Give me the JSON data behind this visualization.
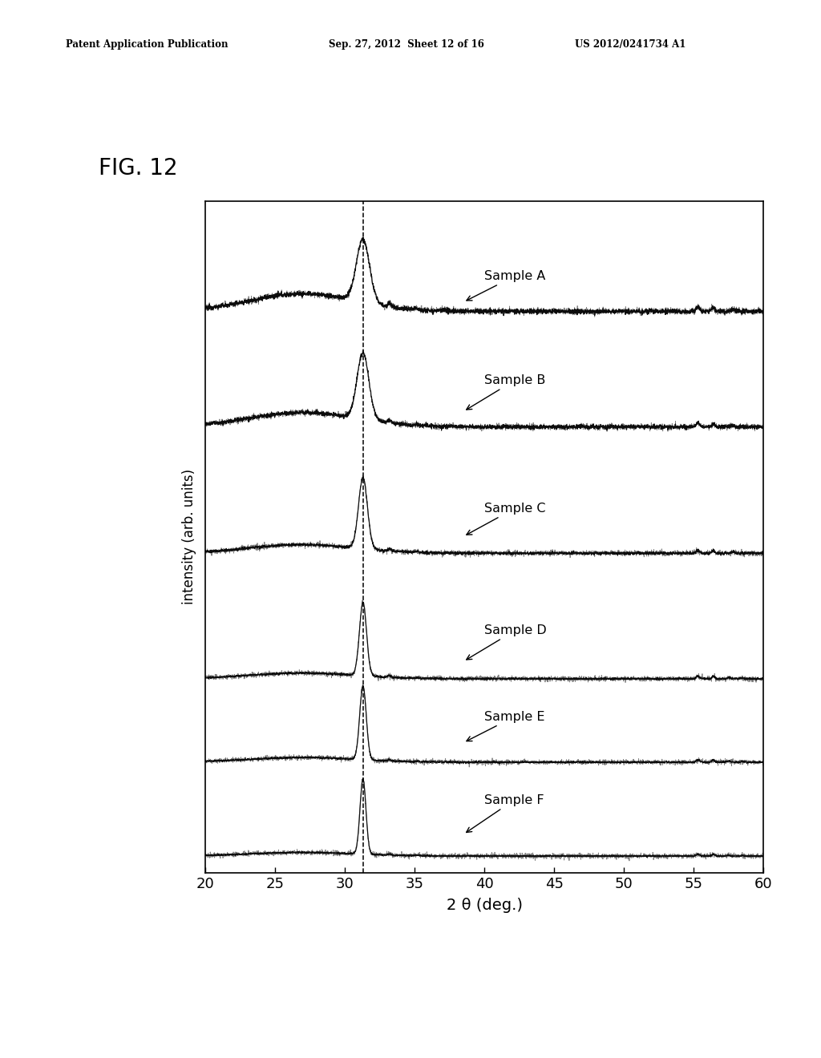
{
  "fig_label": "FIG. 12",
  "patent_line1": "Patent Application Publication",
  "patent_line2": "Sep. 27, 2012  Sheet 12 of 16",
  "patent_line3": "US 2012/0241734 A1",
  "xlabel": "2 θ (deg.)",
  "ylabel": "intensity (arb. units)",
  "xlim": [
    20,
    60
  ],
  "xticks": [
    20,
    25,
    30,
    35,
    40,
    45,
    50,
    55,
    60
  ],
  "xticklabels": [
    "20",
    "25",
    "30",
    "35",
    "40",
    "45",
    "50",
    "55",
    "60"
  ],
  "dashed_line_x": 31.3,
  "samples": [
    "Sample A",
    "Sample B",
    "Sample C",
    "Sample D",
    "Sample E",
    "Sample F"
  ],
  "background_color": "#ffffff",
  "line_color": "#000000",
  "peak_heights": [
    1.0,
    1.2,
    2.0,
    2.8,
    3.2,
    3.8
  ],
  "peak_widths": [
    1.1,
    1.0,
    0.75,
    0.6,
    0.55,
    0.5
  ],
  "offsets": [
    5.2,
    4.1,
    2.9,
    1.7,
    0.9,
    0.0
  ],
  "scale": 0.9
}
